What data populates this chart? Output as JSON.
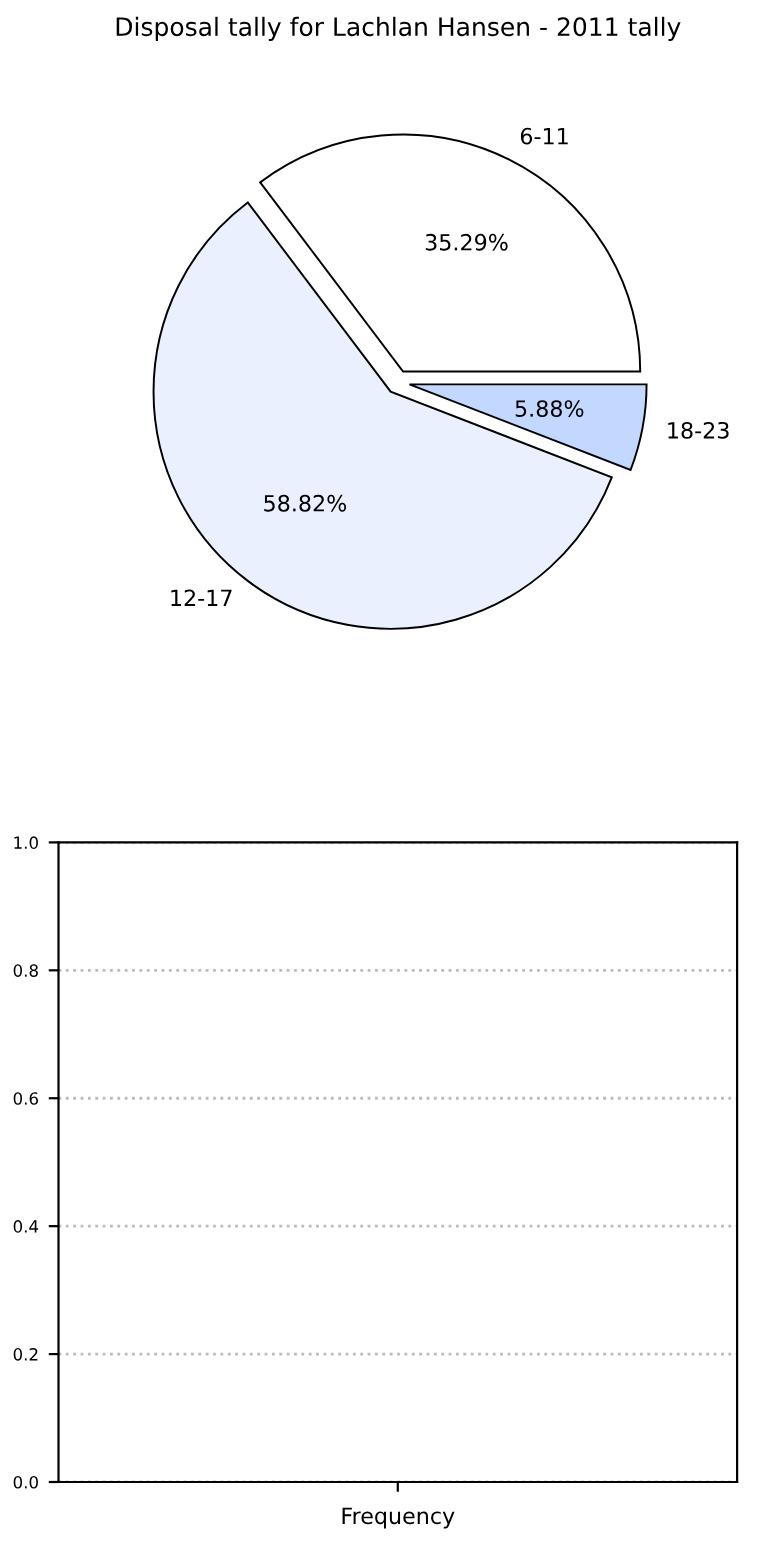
{
  "chart_data": [
    {
      "type": "pie",
      "title": "Disposal tally for Lachlan Hansen - 2011 tally",
      "categories": [
        "6-11",
        "12-17",
        "18-23"
      ],
      "values": [
        35.29,
        58.82,
        5.88
      ],
      "colors": [
        "#ffffff",
        "#eaf0fd",
        "#c3d8ff"
      ],
      "value_labels": [
        "35.29%",
        "58.82%",
        "5.88%"
      ]
    },
    {
      "type": "bar",
      "categories": [
        null
      ],
      "values": [
        null
      ],
      "xlabel": "Frequency",
      "ylim": [
        0,
        1
      ],
      "yticks": [
        {
          "value": 0,
          "label": "0.0"
        },
        {
          "value": 0.2,
          "label": "0.2"
        },
        {
          "value": 0.4,
          "label": "0.4"
        },
        {
          "value": 0.6,
          "label": "0.6"
        },
        {
          "value": 0.8,
          "label": "0.8"
        },
        {
          "value": 1,
          "label": "1.0"
        }
      ],
      "grid": "y"
    }
  ]
}
